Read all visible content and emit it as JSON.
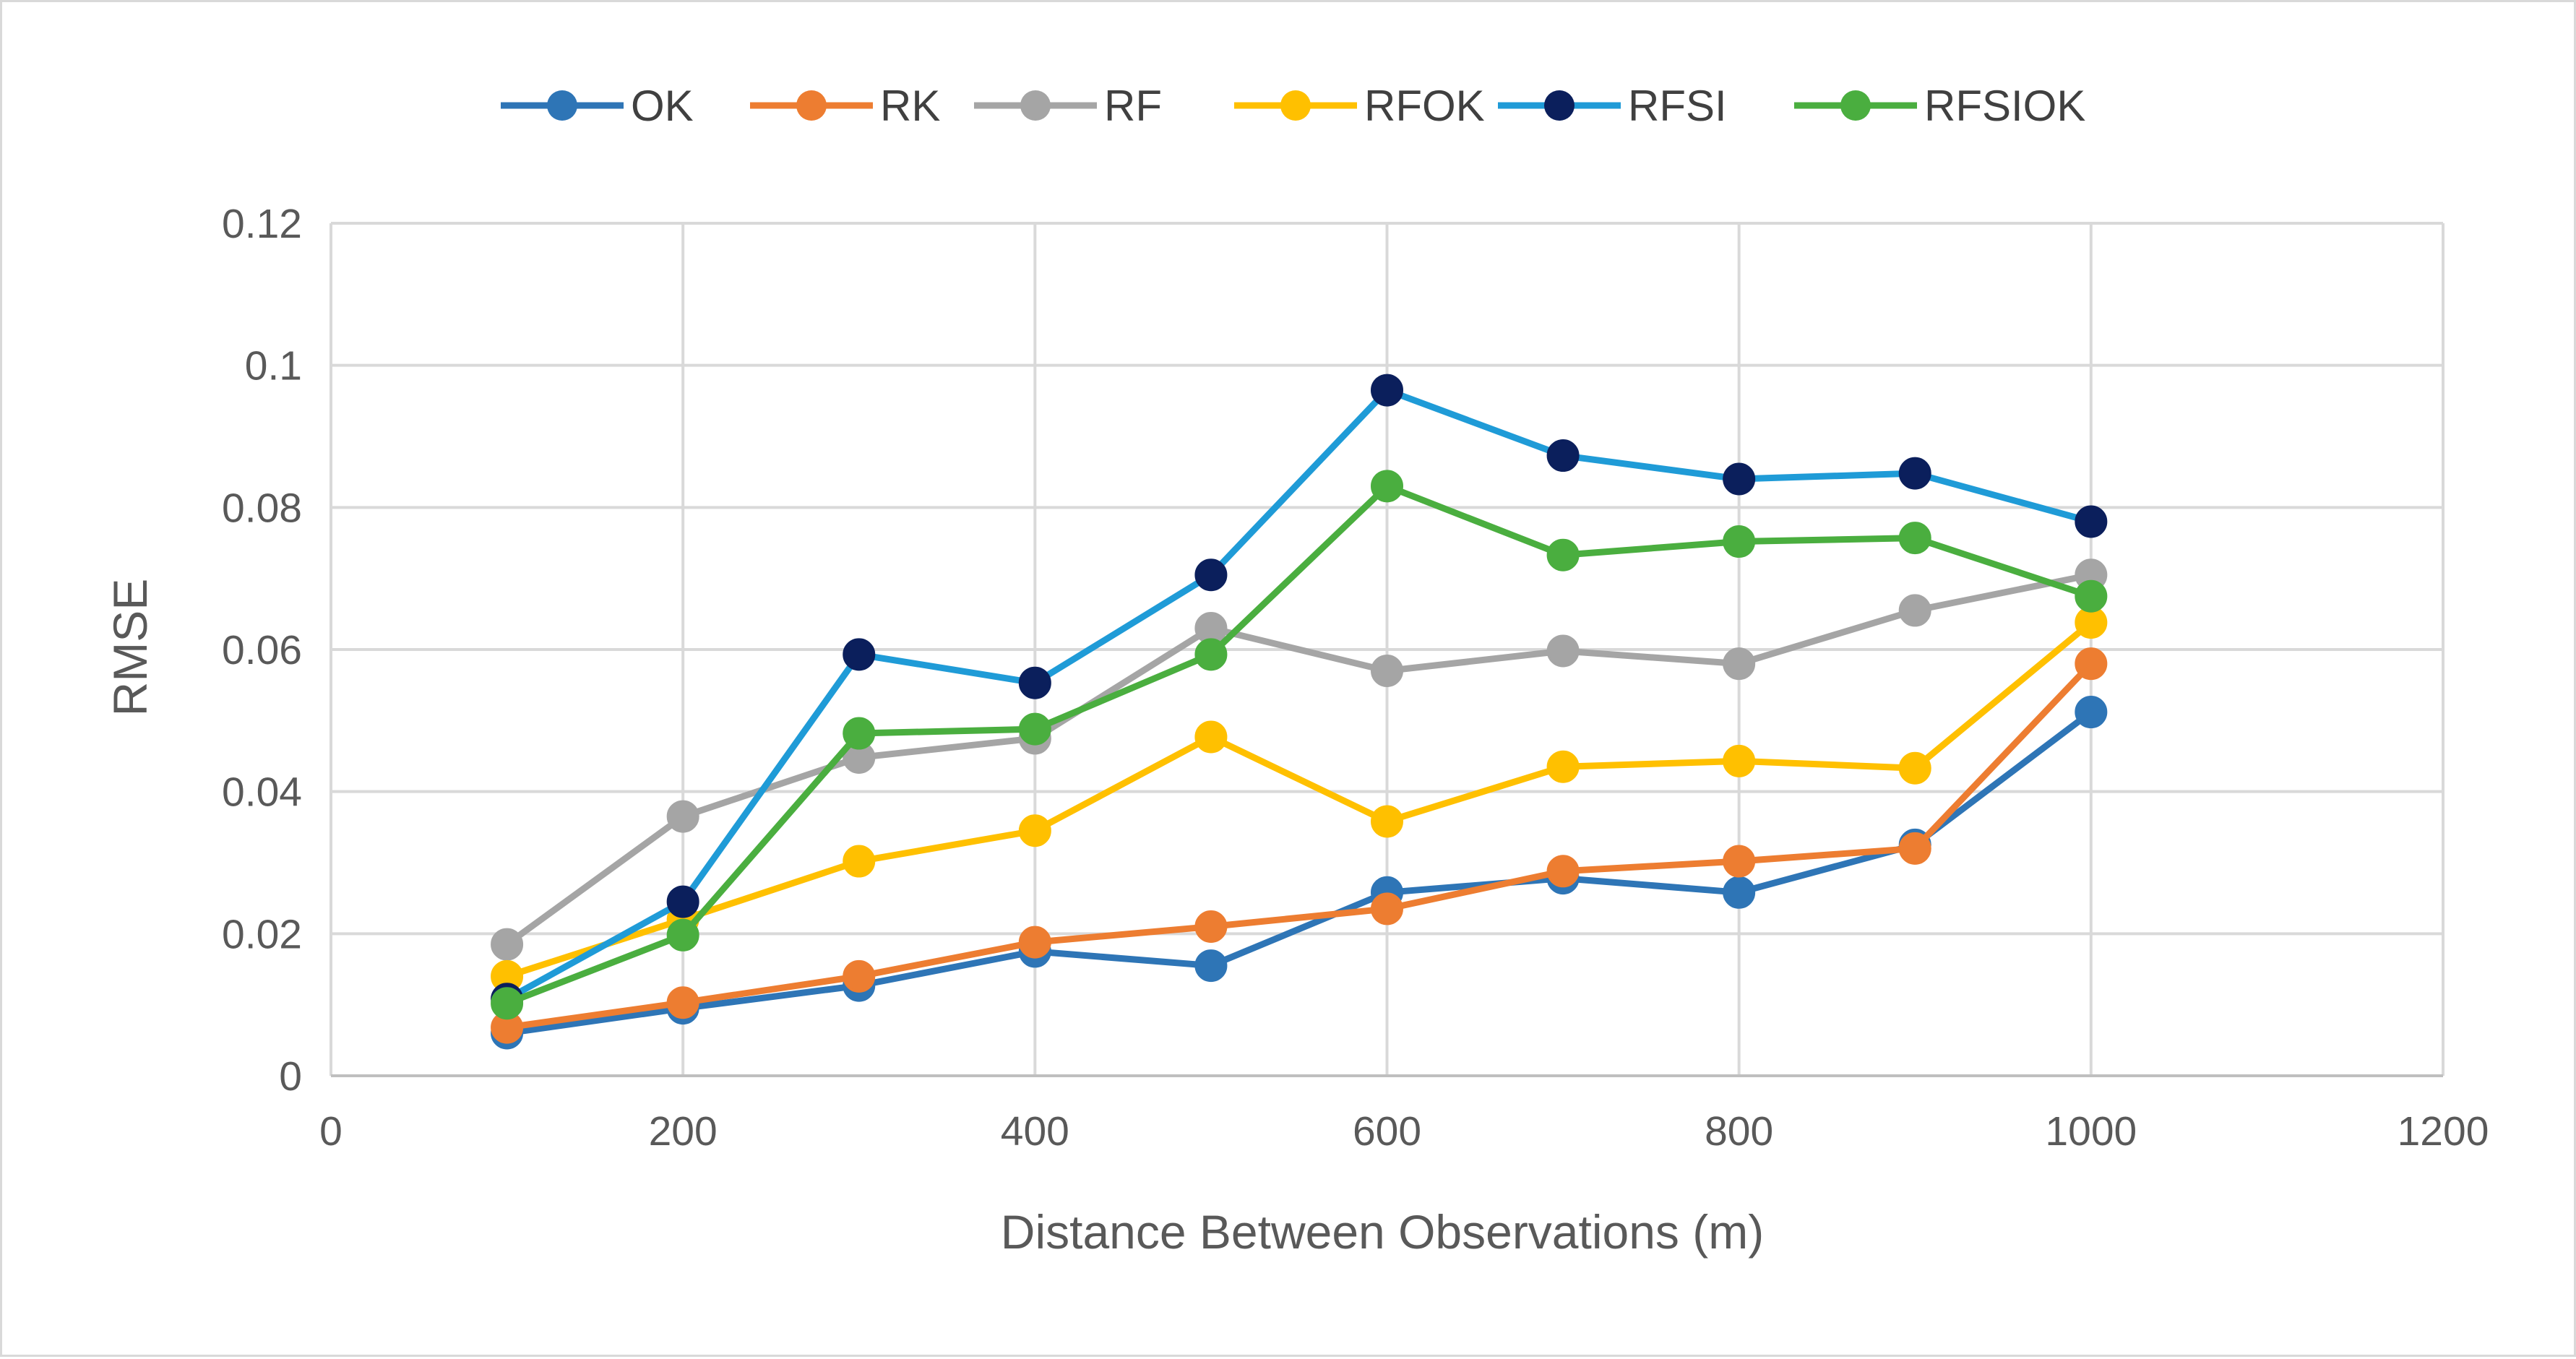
{
  "chart_data": {
    "type": "line",
    "title": "",
    "xlabel": "Distance Between Observations (m)",
    "ylabel": "RMSE",
    "xlim": [
      0,
      1200
    ],
    "ylim": [
      0,
      0.12
    ],
    "x_ticks": [
      "0",
      "200",
      "400",
      "600",
      "800",
      "1000",
      "1200"
    ],
    "y_ticks": [
      "0",
      "0.02",
      "0.04",
      "0.06",
      "0.08",
      "0.1",
      "0.12"
    ],
    "x_tick_values": [
      0,
      200,
      400,
      600,
      800,
      1000,
      1200
    ],
    "y_tick_values": [
      0,
      0.02,
      0.04,
      0.06,
      0.08,
      0.1,
      0.12
    ],
    "grid": true,
    "legend_position": "top",
    "x": [
      100,
      200,
      300,
      400,
      500,
      600,
      700,
      800,
      900,
      1000
    ],
    "series": [
      {
        "name": "OK",
        "line_color": "#2E75B6",
        "marker_color": "#2E75B6",
        "values": [
          0.006,
          0.0095,
          0.0127,
          0.0175,
          0.0155,
          0.0258,
          0.0278,
          0.0258,
          0.0325,
          0.0512
        ]
      },
      {
        "name": "RK",
        "line_color": "#ED7D31",
        "marker_color": "#ED7D31",
        "values": [
          0.0068,
          0.0103,
          0.014,
          0.0188,
          0.021,
          0.0235,
          0.0288,
          0.0302,
          0.032,
          0.058
        ]
      },
      {
        "name": "RF",
        "line_color": "#A5A5A5",
        "marker_color": "#A5A5A5",
        "values": [
          0.0185,
          0.0365,
          0.0448,
          0.0475,
          0.063,
          0.057,
          0.0598,
          0.058,
          0.0655,
          0.0705
        ]
      },
      {
        "name": "RFOK",
        "line_color": "#FFC000",
        "marker_color": "#FFC000",
        "values": [
          0.014,
          0.022,
          0.0302,
          0.0345,
          0.0477,
          0.0358,
          0.0435,
          0.0443,
          0.0433,
          0.0638
        ]
      },
      {
        "name": "RFSI",
        "line_color": "#1F9BD7",
        "marker_color": "#0B1F5C",
        "values": [
          0.0108,
          0.0245,
          0.0593,
          0.0553,
          0.0705,
          0.0965,
          0.0873,
          0.084,
          0.0848,
          0.078
        ]
      },
      {
        "name": "RFSIOK",
        "line_color": "#4AAE3F",
        "marker_color": "#4AAE3F",
        "values": [
          0.0102,
          0.0198,
          0.0482,
          0.0488,
          0.0593,
          0.083,
          0.0733,
          0.0752,
          0.0757,
          0.0675
        ]
      }
    ]
  }
}
